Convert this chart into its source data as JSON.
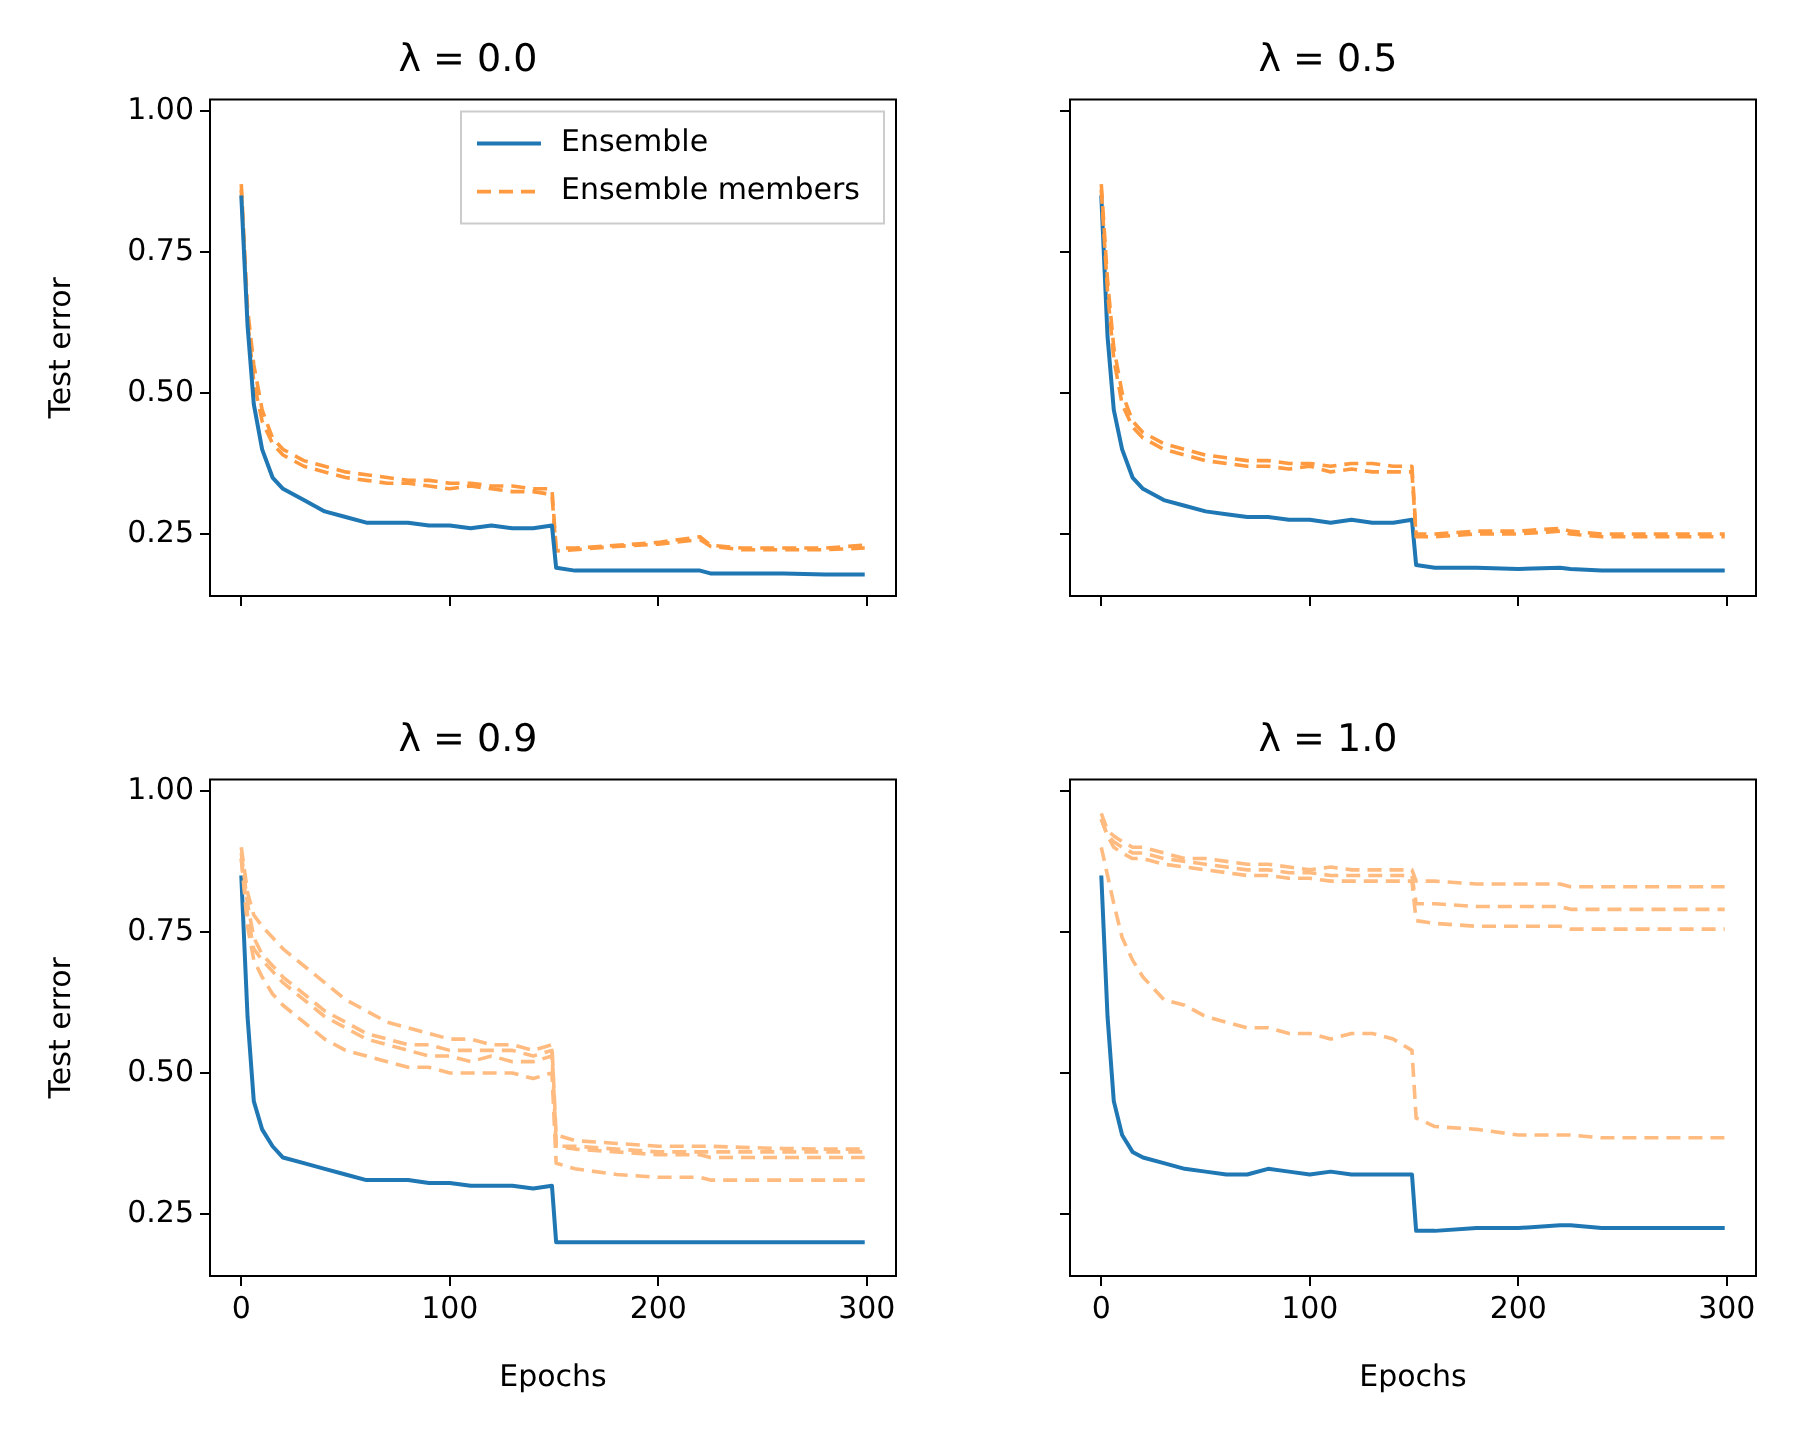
{
  "chart_data": [
    {
      "type": "line",
      "title": "λ = 0.0",
      "ylabel": "Test error",
      "tick_labels": "y",
      "legend": "top right",
      "xlim": [
        -15,
        314
      ],
      "xticks": [
        0,
        100,
        200,
        300
      ],
      "ylim": [
        0.14,
        1.02
      ],
      "yticks": [
        {
          "value": 0.25,
          "label": "0.25"
        },
        {
          "value": 0.5,
          "label": "0.50"
        },
        {
          "value": 0.75,
          "label": "0.75"
        },
        {
          "value": 1,
          "label": "1.00"
        }
      ],
      "x": [
        0,
        3,
        6,
        10,
        15,
        20,
        30,
        40,
        50,
        60,
        70,
        80,
        90,
        100,
        110,
        120,
        130,
        140,
        149,
        151,
        160,
        180,
        200,
        220,
        225,
        240,
        260,
        280,
        299
      ],
      "series": [
        {
          "name": "Ensemble",
          "color": "#1f77b4",
          "line_style": "solid",
          "values": [
            0.85,
            0.62,
            0.48,
            0.4,
            0.35,
            0.33,
            0.31,
            0.29,
            0.28,
            0.27,
            0.27,
            0.27,
            0.265,
            0.265,
            0.26,
            0.265,
            0.26,
            0.26,
            0.265,
            0.19,
            0.185,
            0.185,
            0.185,
            0.185,
            0.18,
            0.18,
            0.18,
            0.178,
            0.178
          ]
        },
        {
          "name": "Ensemble members",
          "color": "#ff9a40",
          "line_style": "dashed",
          "values": [
            0.87,
            0.65,
            0.55,
            0.47,
            0.42,
            0.4,
            0.38,
            0.37,
            0.36,
            0.355,
            0.35,
            0.345,
            0.345,
            0.34,
            0.34,
            0.335,
            0.335,
            0.33,
            0.33,
            0.225,
            0.225,
            0.23,
            0.235,
            0.245,
            0.23,
            0.225,
            0.225,
            0.225,
            0.23
          ]
        },
        {
          "color": "#ff9a40",
          "line_style": "dashed",
          "values": [
            0.86,
            0.63,
            0.52,
            0.45,
            0.41,
            0.39,
            0.37,
            0.36,
            0.35,
            0.345,
            0.34,
            0.34,
            0.335,
            0.33,
            0.335,
            0.33,
            0.325,
            0.325,
            0.32,
            0.22,
            0.222,
            0.228,
            0.232,
            0.24,
            0.228,
            0.222,
            0.222,
            0.222,
            0.225
          ]
        }
      ]
    },
    {
      "type": "line",
      "title": "λ = 0.5",
      "tick_labels": false,
      "xlim": [
        -15,
        314
      ],
      "xticks": [
        0,
        100,
        200,
        300
      ],
      "ylim": [
        0.14,
        1.02
      ],
      "yticks": [
        0.25,
        0.5,
        0.75,
        1
      ],
      "x": [
        0,
        3,
        6,
        10,
        15,
        20,
        30,
        40,
        50,
        60,
        70,
        80,
        90,
        100,
        110,
        120,
        130,
        140,
        149,
        151,
        160,
        180,
        200,
        220,
        225,
        240,
        260,
        280,
        299
      ],
      "series": [
        {
          "color": "#ff9a40",
          "line_style": "dashed",
          "values": [
            0.87,
            0.7,
            0.58,
            0.5,
            0.45,
            0.43,
            0.41,
            0.4,
            0.39,
            0.385,
            0.38,
            0.38,
            0.375,
            0.375,
            0.37,
            0.375,
            0.375,
            0.37,
            0.37,
            0.25,
            0.25,
            0.255,
            0.255,
            0.26,
            0.255,
            0.25,
            0.25,
            0.25,
            0.25
          ]
        },
        {
          "color": "#ff9a40",
          "line_style": "dashed",
          "values": [
            0.86,
            0.68,
            0.56,
            0.48,
            0.44,
            0.42,
            0.4,
            0.39,
            0.38,
            0.375,
            0.37,
            0.37,
            0.365,
            0.37,
            0.36,
            0.365,
            0.36,
            0.36,
            0.36,
            0.245,
            0.245,
            0.25,
            0.25,
            0.255,
            0.25,
            0.245,
            0.245,
            0.245,
            0.245
          ]
        },
        {
          "color": "#1f77b4",
          "line_style": "solid",
          "values": [
            0.85,
            0.6,
            0.47,
            0.4,
            0.35,
            0.33,
            0.31,
            0.3,
            0.29,
            0.285,
            0.28,
            0.28,
            0.275,
            0.275,
            0.27,
            0.275,
            0.27,
            0.27,
            0.275,
            0.195,
            0.19,
            0.19,
            0.188,
            0.19,
            0.188,
            0.185,
            0.185,
            0.185,
            0.185
          ]
        }
      ]
    },
    {
      "type": "line",
      "title": "λ = 0.9",
      "xlabel": "Epochs",
      "ylabel": "Test error",
      "xlim": [
        -15,
        314
      ],
      "xticks": [
        0,
        100,
        200,
        300
      ],
      "ylim": [
        0.14,
        1.02
      ],
      "yticks": [
        {
          "value": 0.25,
          "label": "0.25"
        },
        {
          "value": 0.5,
          "label": "0.50"
        },
        {
          "value": 0.75,
          "label": "0.75"
        },
        {
          "value": 1,
          "label": "1.00"
        }
      ],
      "x": [
        0,
        3,
        6,
        10,
        15,
        20,
        30,
        40,
        50,
        60,
        70,
        80,
        90,
        100,
        110,
        120,
        130,
        140,
        149,
        151,
        160,
        180,
        200,
        220,
        225,
        240,
        260,
        280,
        299
      ],
      "series": [
        {
          "color": "#ffbb80",
          "line_style": "dashed",
          "values": [
            0.9,
            0.82,
            0.78,
            0.76,
            0.74,
            0.72,
            0.69,
            0.66,
            0.63,
            0.61,
            0.59,
            0.58,
            0.57,
            0.56,
            0.56,
            0.55,
            0.55,
            0.54,
            0.55,
            0.39,
            0.38,
            0.375,
            0.37,
            0.37,
            0.37,
            0.368,
            0.366,
            0.365,
            0.365
          ]
        },
        {
          "color": "#ffbb80",
          "line_style": "dashed",
          "values": [
            0.88,
            0.78,
            0.72,
            0.7,
            0.68,
            0.66,
            0.63,
            0.6,
            0.58,
            0.56,
            0.55,
            0.54,
            0.53,
            0.53,
            0.52,
            0.53,
            0.52,
            0.52,
            0.53,
            0.37,
            0.365,
            0.36,
            0.355,
            0.355,
            0.35,
            0.35,
            0.35,
            0.35,
            0.35
          ]
        },
        {
          "color": "#ffbb80",
          "line_style": "dashed",
          "values": [
            0.88,
            0.76,
            0.7,
            0.67,
            0.64,
            0.62,
            0.59,
            0.56,
            0.54,
            0.53,
            0.52,
            0.51,
            0.51,
            0.5,
            0.5,
            0.5,
            0.5,
            0.49,
            0.5,
            0.34,
            0.33,
            0.32,
            0.315,
            0.315,
            0.31,
            0.31,
            0.31,
            0.31,
            0.31
          ]
        },
        {
          "color": "#ffbb80",
          "line_style": "dashed",
          "values": [
            0.89,
            0.8,
            0.74,
            0.71,
            0.69,
            0.67,
            0.64,
            0.61,
            0.59,
            0.57,
            0.56,
            0.55,
            0.55,
            0.54,
            0.54,
            0.54,
            0.54,
            0.53,
            0.54,
            0.37,
            0.37,
            0.365,
            0.36,
            0.36,
            0.36,
            0.36,
            0.36,
            0.36,
            0.36
          ]
        },
        {
          "color": "#1f77b4",
          "line_style": "solid",
          "values": [
            0.85,
            0.6,
            0.45,
            0.4,
            0.37,
            0.35,
            0.34,
            0.33,
            0.32,
            0.31,
            0.31,
            0.31,
            0.305,
            0.305,
            0.3,
            0.3,
            0.3,
            0.295,
            0.3,
            0.2,
            0.2,
            0.2,
            0.2,
            0.2,
            0.2,
            0.2,
            0.2,
            0.2,
            0.2
          ]
        }
      ]
    },
    {
      "type": "line",
      "title": "λ = 1.0",
      "xlabel": "Epochs",
      "tick_labels": "x",
      "xlim": [
        -15,
        314
      ],
      "xticks": [
        0,
        100,
        200,
        300
      ],
      "ylim": [
        0.14,
        1.02
      ],
      "yticks": [
        0.25,
        0.5,
        0.75,
        1
      ],
      "x": [
        0,
        3,
        6,
        10,
        15,
        20,
        30,
        40,
        50,
        60,
        70,
        80,
        90,
        100,
        110,
        120,
        130,
        140,
        149,
        151,
        160,
        180,
        200,
        220,
        225,
        240,
        260,
        280,
        299
      ],
      "series": [
        {
          "color": "#ffbb80",
          "line_style": "dashed",
          "values": [
            0.96,
            0.93,
            0.92,
            0.91,
            0.9,
            0.9,
            0.89,
            0.88,
            0.88,
            0.875,
            0.87,
            0.87,
            0.865,
            0.86,
            0.865,
            0.86,
            0.86,
            0.86,
            0.86,
            0.84,
            0.84,
            0.835,
            0.835,
            0.835,
            0.83,
            0.83,
            0.83,
            0.83,
            0.83
          ]
        },
        {
          "color": "#ffbb80",
          "line_style": "dashed",
          "values": [
            0.95,
            0.92,
            0.91,
            0.9,
            0.89,
            0.89,
            0.88,
            0.875,
            0.87,
            0.865,
            0.86,
            0.86,
            0.855,
            0.855,
            0.85,
            0.85,
            0.85,
            0.85,
            0.85,
            0.8,
            0.8,
            0.795,
            0.795,
            0.795,
            0.79,
            0.79,
            0.79,
            0.79,
            0.79
          ]
        },
        {
          "color": "#ffbb80",
          "line_style": "dashed",
          "values": [
            0.95,
            0.92,
            0.9,
            0.89,
            0.88,
            0.88,
            0.87,
            0.865,
            0.86,
            0.855,
            0.85,
            0.85,
            0.845,
            0.845,
            0.84,
            0.84,
            0.84,
            0.84,
            0.84,
            0.77,
            0.765,
            0.76,
            0.76,
            0.76,
            0.755,
            0.755,
            0.755,
            0.755,
            0.755
          ]
        },
        {
          "color": "#ffbb80",
          "line_style": "dashed",
          "values": [
            0.9,
            0.85,
            0.8,
            0.74,
            0.7,
            0.67,
            0.63,
            0.62,
            0.6,
            0.59,
            0.58,
            0.58,
            0.57,
            0.57,
            0.56,
            0.57,
            0.57,
            0.56,
            0.54,
            0.42,
            0.405,
            0.4,
            0.39,
            0.39,
            0.39,
            0.385,
            0.385,
            0.385,
            0.385
          ]
        },
        {
          "color": "#1f77b4",
          "line_style": "solid",
          "values": [
            0.85,
            0.6,
            0.45,
            0.39,
            0.36,
            0.35,
            0.34,
            0.33,
            0.325,
            0.32,
            0.32,
            0.33,
            0.325,
            0.32,
            0.325,
            0.32,
            0.32,
            0.32,
            0.32,
            0.22,
            0.22,
            0.225,
            0.225,
            0.23,
            0.23,
            0.225,
            0.225,
            0.225,
            0.225
          ]
        }
      ]
    }
  ]
}
